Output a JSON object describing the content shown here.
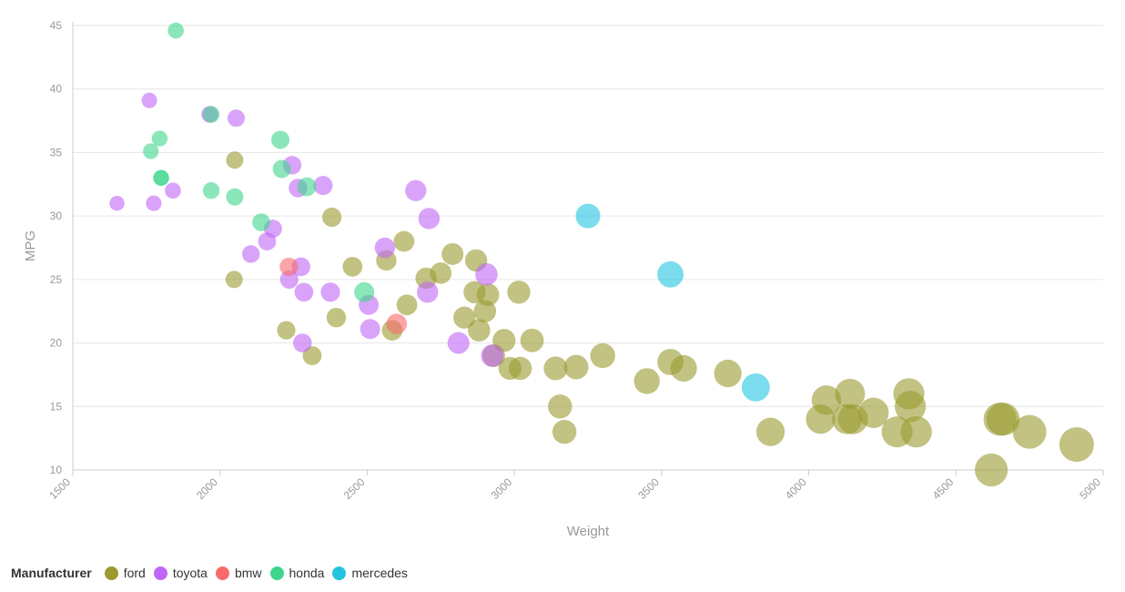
{
  "chart_data": {
    "type": "scatter",
    "xlabel": "Weight",
    "ylabel": "MPG",
    "xlim": [
      1500,
      5000
    ],
    "ylim": [
      10,
      45
    ],
    "xticks": [
      "1500",
      "2000",
      "2500",
      "3000",
      "3500",
      "4000",
      "4500",
      "5000"
    ],
    "yticks": [
      "10",
      "15",
      "20",
      "25",
      "30",
      "35",
      "40",
      "45"
    ],
    "grid": true,
    "legend_title": "Manufacturer",
    "legend_position": "bottom-left",
    "series": [
      {
        "name": "ford",
        "color": "#9a9a2e",
        "points": [
          [
            2050,
            34.4
          ],
          [
            2048,
            25
          ],
          [
            2225,
            21
          ],
          [
            2313,
            19
          ],
          [
            2380,
            29.9
          ],
          [
            2395,
            22
          ],
          [
            2450,
            26
          ],
          [
            2565,
            26.5
          ],
          [
            2585,
            21
          ],
          [
            2625,
            28
          ],
          [
            2635,
            23
          ],
          [
            2700,
            25.1
          ],
          [
            2750,
            25.5
          ],
          [
            2790,
            27
          ],
          [
            2830,
            22
          ],
          [
            2870,
            26.5
          ],
          [
            2865,
            24
          ],
          [
            2880,
            21
          ],
          [
            2900,
            22.5
          ],
          [
            2910,
            23.8
          ],
          [
            2930,
            19
          ],
          [
            2965,
            20.2
          ],
          [
            2985,
            18
          ],
          [
            3020,
            18
          ],
          [
            3015,
            24
          ],
          [
            3060,
            20.2
          ],
          [
            3140,
            18
          ],
          [
            3155,
            15
          ],
          [
            3170,
            13
          ],
          [
            3210,
            18.1
          ],
          [
            3300,
            19
          ],
          [
            3450,
            17
          ],
          [
            3530,
            18.5
          ],
          [
            3575,
            18
          ],
          [
            3725,
            17.6
          ],
          [
            3870,
            13
          ],
          [
            4040,
            14
          ],
          [
            4060,
            15.5
          ],
          [
            4140,
            16
          ],
          [
            4130,
            14
          ],
          [
            4150,
            14
          ],
          [
            4220,
            14.5
          ],
          [
            4300,
            13
          ],
          [
            4340,
            16
          ],
          [
            4345,
            15
          ],
          [
            4365,
            13
          ],
          [
            4620,
            10
          ],
          [
            4650,
            14
          ],
          [
            4660,
            14
          ],
          [
            4750,
            13
          ],
          [
            4910,
            12
          ]
        ]
      },
      {
        "name": "toyota",
        "color": "#c065f5",
        "points": [
          [
            1650,
            31
          ],
          [
            1760,
            39.1
          ],
          [
            1775,
            31
          ],
          [
            1840,
            32
          ],
          [
            1965,
            38
          ],
          [
            2055,
            37.7
          ],
          [
            2105,
            27
          ],
          [
            2160,
            28
          ],
          [
            2180,
            29
          ],
          [
            2235,
            25
          ],
          [
            2245,
            34
          ],
          [
            2265,
            32.2
          ],
          [
            2275,
            26
          ],
          [
            2280,
            20
          ],
          [
            2285,
            24
          ],
          [
            2350,
            32.4
          ],
          [
            2375,
            24
          ],
          [
            2505,
            23
          ],
          [
            2510,
            21.1
          ],
          [
            2560,
            27.5
          ],
          [
            2665,
            32
          ],
          [
            2710,
            29.8
          ],
          [
            2705,
            24
          ],
          [
            2810,
            20
          ],
          [
            2905,
            25.4
          ],
          [
            2925,
            19
          ]
        ]
      },
      {
        "name": "bmw",
        "color": "#f86b6b",
        "points": [
          [
            2234,
            26
          ],
          [
            2600,
            21.5
          ]
        ]
      },
      {
        "name": "honda",
        "color": "#3dd68c",
        "points": [
          [
            1850,
            44.6
          ],
          [
            1795,
            36.1
          ],
          [
            1765,
            35.1
          ],
          [
            1800,
            33
          ],
          [
            1800,
            33
          ],
          [
            1970,
            32
          ],
          [
            2050,
            31.5
          ],
          [
            2205,
            36
          ],
          [
            2210,
            33.7
          ],
          [
            2295,
            32.3
          ],
          [
            2140,
            29.5
          ],
          [
            2490,
            24
          ],
          [
            1970,
            38
          ]
        ]
      },
      {
        "name": "mercedes",
        "color": "#22c5e0",
        "points": [
          [
            3250,
            30
          ],
          [
            3530,
            25.4
          ],
          [
            3820,
            16.5
          ]
        ]
      }
    ]
  }
}
